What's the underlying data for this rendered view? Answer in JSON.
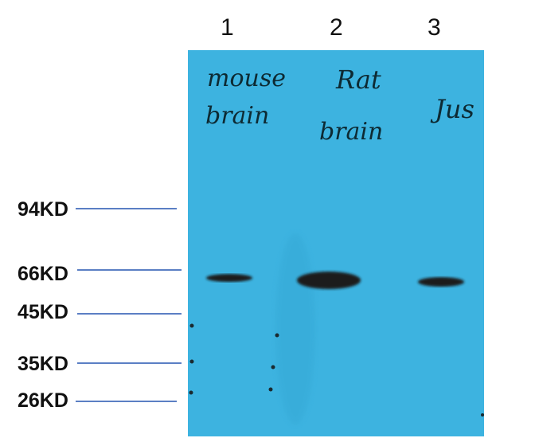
{
  "lanes": [
    {
      "number": "1",
      "label_line1": "mouse",
      "label_line2": "brain"
    },
    {
      "number": "2",
      "label_line1": "Rat",
      "label_line2": "brain"
    },
    {
      "number": "3",
      "label_line1": "Jus",
      "label_line2": ""
    }
  ],
  "markers": [
    "94KD",
    "66KD",
    "45KD",
    "35KD",
    "26KD"
  ],
  "colors": {
    "membrane": "#3db3e0",
    "band": "#1a1a1a",
    "marker_line": "#5b7fc4"
  }
}
